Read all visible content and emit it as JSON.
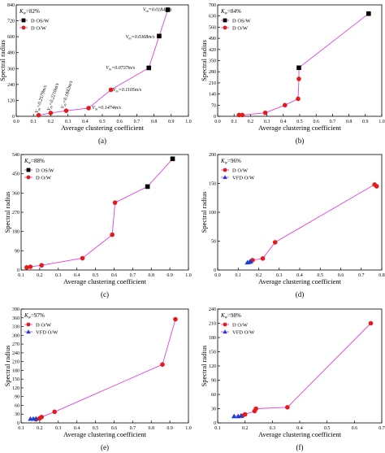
{
  "figure": {
    "colors": {
      "line": "#e040e0",
      "os_w": "#000000",
      "o_w": "#e31b1b",
      "vfd": "#1f3fd0",
      "axis": "#000000"
    }
  },
  "chart_data": [
    {
      "id": "a",
      "panel_label": "(a)",
      "type": "scatter",
      "xlabel": "Average clustering coefficient",
      "ylabel": "Spectral radius",
      "xlim": [
        0,
        1.0
      ],
      "ylim": [
        0,
        840
      ],
      "xticks": [
        "0.0",
        "0.1",
        "0.2",
        "0.3",
        "0.4",
        "0.5",
        "0.6",
        "0.7",
        "0.8",
        "0.9",
        "1.0"
      ],
      "yticks": [
        "0",
        "120",
        "240",
        "360",
        "480",
        "600",
        "720",
        "840"
      ],
      "kw": {
        "base": "K",
        "sub": "w",
        "value": "=82%"
      },
      "legend": [
        "D OS/W",
        "D O/W"
      ],
      "series": [
        {
          "name": "D OS/W",
          "marker": "square",
          "points": [
            [
              0.77,
              365
            ],
            [
              0.83,
              605
            ],
            [
              0.88,
              803
            ]
          ]
        },
        {
          "name": "D O/W",
          "marker": "circle",
          "points": [
            [
              0.13,
              8
            ],
            [
              0.2,
              25
            ],
            [
              0.29,
              42
            ],
            [
              0.42,
              62
            ],
            [
              0.55,
              200
            ]
          ]
        }
      ],
      "line_order": [
        [
          0.13,
          8
        ],
        [
          0.2,
          25
        ],
        [
          0.29,
          42
        ],
        [
          0.42,
          62
        ],
        [
          0.55,
          200
        ],
        [
          0.77,
          365
        ],
        [
          0.83,
          605
        ],
        [
          0.88,
          803
        ]
      ],
      "annotations": [
        {
          "v": "V",
          "sub": "m",
          "rest": "=0.0184m/s",
          "x": 0.735,
          "y": 795,
          "rot": 0
        },
        {
          "v": "V",
          "sub": "m",
          "rest": "=0.0368m/s",
          "x": 0.635,
          "y": 590,
          "rot": 0
        },
        {
          "v": "V",
          "sub": "m",
          "rest": "=0.0737m/s",
          "x": 0.52,
          "y": 355,
          "rot": 0
        },
        {
          "v": "V",
          "sub": "m",
          "rest": "=0.1105m/s",
          "x": 0.56,
          "y": 190,
          "rot": 0
        },
        {
          "v": "V",
          "sub": "m",
          "rest": "=0.1474m/s",
          "x": 0.44,
          "y": 55,
          "rot": 0
        },
        {
          "v": "V",
          "sub": "m",
          "rest": "=0.1842m/s",
          "x": 0.275,
          "y": 55,
          "rot": -72
        },
        {
          "v": "V",
          "sub": "m",
          "rest": "=0.2210m/s",
          "x": 0.195,
          "y": 38,
          "rot": -72
        },
        {
          "v": "V",
          "sub": "m",
          "rest": "=0.2579m/s",
          "x": 0.125,
          "y": 22,
          "rot": -72
        }
      ]
    },
    {
      "id": "b",
      "panel_label": "(b)",
      "type": "scatter",
      "xlabel": "Average clustering coefficient",
      "ylabel": "Spectral radius",
      "xlim": [
        0,
        1.0
      ],
      "ylim": [
        0,
        700
      ],
      "xticks": [
        "0.0",
        "0.1",
        "0.2",
        "0.3",
        "0.4",
        "0.5",
        "0.6",
        "0.7",
        "0.8",
        "0.9",
        "1.0"
      ],
      "yticks": [
        "0",
        "70",
        "140",
        "210",
        "280",
        "350",
        "420",
        "490",
        "560",
        "630",
        "700"
      ],
      "kw": {
        "base": "K",
        "sub": "w",
        "value": "=84%"
      },
      "legend": [
        "D OS/W",
        "D O/W"
      ],
      "series": [
        {
          "name": "D OS/W",
          "marker": "square",
          "points": [
            [
              0.495,
              305
            ],
            [
              0.92,
              645
            ]
          ]
        },
        {
          "name": "D O/W",
          "marker": "circle",
          "points": [
            [
              0.13,
              8
            ],
            [
              0.15,
              8
            ],
            [
              0.29,
              22
            ],
            [
              0.41,
              70
            ],
            [
              0.49,
              110
            ],
            [
              0.495,
              235
            ]
          ]
        }
      ],
      "line_order": [
        [
          0.13,
          8
        ],
        [
          0.15,
          8
        ],
        [
          0.29,
          22
        ],
        [
          0.41,
          70
        ],
        [
          0.49,
          110
        ],
        [
          0.495,
          235
        ],
        [
          0.495,
          305
        ],
        [
          0.92,
          645
        ]
      ]
    },
    {
      "id": "c",
      "panel_label": "(c)",
      "type": "scatter",
      "xlabel": "Average clustering coefficient",
      "ylabel": "Spectral radius",
      "xlim": [
        0.1,
        1.0
      ],
      "ylim": [
        0,
        540
      ],
      "xticks": [
        "0.1",
        "0.2",
        "0.3",
        "0.4",
        "0.5",
        "0.6",
        "0.7",
        "0.8",
        "0.9",
        "1.0"
      ],
      "yticks": [
        "0",
        "90",
        "180",
        "270",
        "360",
        "450",
        "540"
      ],
      "kw": {
        "base": "K",
        "sub": "w",
        "value": "=88%"
      },
      "legend": [
        "D OS/W",
        "D O/W"
      ],
      "series": [
        {
          "name": "D OS/W",
          "marker": "square",
          "points": [
            [
              0.78,
              390
            ],
            [
              0.915,
              520
            ]
          ]
        },
        {
          "name": "D O/W",
          "marker": "circle",
          "points": [
            [
              0.13,
              12
            ],
            [
              0.15,
              15
            ],
            [
              0.21,
              22
            ],
            [
              0.43,
              55
            ],
            [
              0.59,
              165
            ],
            [
              0.605,
              315
            ]
          ]
        }
      ],
      "line_order": [
        [
          0.13,
          12
        ],
        [
          0.15,
          15
        ],
        [
          0.21,
          22
        ],
        [
          0.43,
          55
        ],
        [
          0.59,
          165
        ],
        [
          0.605,
          315
        ],
        [
          0.78,
          390
        ],
        [
          0.915,
          520
        ]
      ]
    },
    {
      "id": "d",
      "panel_label": "(d)",
      "type": "scatter",
      "xlabel": "Average clustering coefficient",
      "ylabel": "Spectral radius",
      "xlim": [
        0,
        0.8
      ],
      "ylim": [
        0,
        200
      ],
      "xticks": [
        "0.0",
        "0.1",
        "0.2",
        "0.3",
        "0.4",
        "0.5",
        "0.6",
        "0.7",
        "0.8"
      ],
      "yticks": [
        "0",
        "50",
        "100",
        "150",
        "200"
      ],
      "kw": {
        "base": "K",
        "sub": "w",
        "value": "=96%"
      },
      "legend": [
        "D O/W",
        "VFD O/W"
      ],
      "series": [
        {
          "name": "D O/W",
          "marker": "circle",
          "points": [
            [
              0.17,
              17
            ],
            [
              0.22,
              20
            ],
            [
              0.28,
              48
            ],
            [
              0.765,
              148
            ],
            [
              0.775,
              145
            ]
          ]
        },
        {
          "name": "VFD O/W",
          "marker": "triangle",
          "points": [
            [
              0.145,
              13
            ],
            [
              0.155,
              14
            ],
            [
              0.16,
              15
            ]
          ]
        }
      ],
      "line_order": [
        [
          0.145,
          13
        ],
        [
          0.17,
          17
        ],
        [
          0.22,
          20
        ],
        [
          0.28,
          48
        ],
        [
          0.765,
          148
        ],
        [
          0.775,
          145
        ]
      ]
    },
    {
      "id": "e",
      "panel_label": "(e)",
      "type": "scatter",
      "xlabel": "Average clustering coefficient",
      "ylabel": "Spectral radius",
      "xlim": [
        0.1,
        1.0
      ],
      "ylim": [
        0,
        390
      ],
      "xticks": [
        "0.1",
        "0.2",
        "0.3",
        "0.4",
        "0.5",
        "0.6",
        "0.7",
        "0.8",
        "0.9",
        "1.0"
      ],
      "yticks": [
        "0",
        "30",
        "60",
        "90",
        "120",
        "150",
        "180",
        "210",
        "240",
        "270",
        "300",
        "330",
        "360",
        "390"
      ],
      "kw": {
        "base": "K",
        "sub": "w",
        "value": "=97%"
      },
      "legend": [
        "D O/W",
        "VFD O/W"
      ],
      "series": [
        {
          "name": "D O/W",
          "marker": "circle",
          "points": [
            [
              0.18,
              12
            ],
            [
              0.2,
              16
            ],
            [
              0.21,
              20
            ],
            [
              0.28,
              38
            ],
            [
              0.86,
              200
            ],
            [
              0.93,
              355
            ]
          ]
        },
        {
          "name": "VFD O/W",
          "marker": "triangle",
          "points": [
            [
              0.15,
              14
            ],
            [
              0.165,
              14
            ],
            [
              0.18,
              15
            ]
          ]
        }
      ],
      "line_order": [
        [
          0.15,
          14
        ],
        [
          0.18,
          12
        ],
        [
          0.2,
          16
        ],
        [
          0.21,
          20
        ],
        [
          0.28,
          38
        ],
        [
          0.86,
          200
        ],
        [
          0.93,
          355
        ]
      ]
    },
    {
      "id": "f",
      "panel_label": "(f)",
      "type": "scatter",
      "xlabel": "Average clustering coefficient",
      "ylabel": "Spectral radius",
      "xlim": [
        0.1,
        0.7
      ],
      "ylim": [
        0,
        240
      ],
      "xticks": [
        "0.1",
        "0.2",
        "0.3",
        "0.4",
        "0.5",
        "0.6",
        "0.7"
      ],
      "yticks": [
        "0",
        "30",
        "60",
        "90",
        "120",
        "150",
        "180",
        "210",
        "240"
      ],
      "kw": {
        "base": "K",
        "sub": "w",
        "value": "=98%"
      },
      "legend": [
        "D O/W",
        "VFD O/W"
      ],
      "series": [
        {
          "name": "D O/W",
          "marker": "circle",
          "points": [
            [
              0.19,
              15
            ],
            [
              0.2,
              18
            ],
            [
              0.235,
              25
            ],
            [
              0.24,
              30
            ],
            [
              0.355,
              33
            ],
            [
              0.66,
              210
            ]
          ]
        },
        {
          "name": "VFD O/W",
          "marker": "triangle",
          "points": [
            [
              0.16,
              14
            ],
            [
              0.175,
              14
            ],
            [
              0.185,
              15
            ]
          ]
        }
      ],
      "line_order": [
        [
          0.16,
          14
        ],
        [
          0.19,
          15
        ],
        [
          0.2,
          18
        ],
        [
          0.235,
          25
        ],
        [
          0.24,
          30
        ],
        [
          0.355,
          33
        ],
        [
          0.66,
          210
        ]
      ]
    }
  ]
}
